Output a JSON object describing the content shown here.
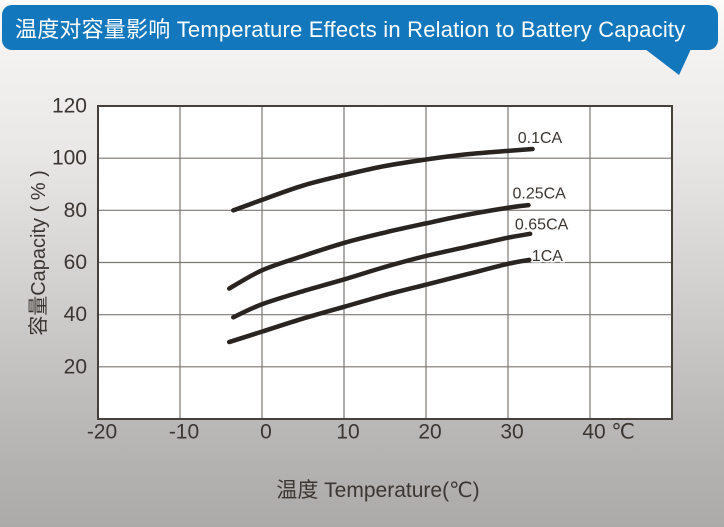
{
  "header": {
    "title": "温度对容量影响 Temperature Effects in Relation to Battery Capacity",
    "bg_color": "#1377bd",
    "text_color": "#ffffff"
  },
  "chart_data": {
    "type": "line",
    "title": "温度对容量影响 Temperature Effects in Relation to Battery Capacity",
    "xlabel": "温度  Temperature(℃)",
    "ylabel": "容量Capacity ( % )",
    "x_unit": "℃",
    "xlim": [
      -20,
      50
    ],
    "ylim": [
      0,
      120
    ],
    "x_ticks": [
      -20,
      -10,
      0,
      10,
      20,
      30,
      40
    ],
    "y_ticks": [
      20,
      40,
      60,
      80,
      100,
      120
    ],
    "grid": true,
    "legend_position": "inline-annotations",
    "series": [
      {
        "name": "0.1CA",
        "points": [
          [
            -3.5,
            80
          ],
          [
            0,
            84
          ],
          [
            5,
            89.5
          ],
          [
            10,
            93.5
          ],
          [
            15,
            97
          ],
          [
            20,
            99.5
          ],
          [
            25,
            101.5
          ],
          [
            30,
            102.8
          ],
          [
            33,
            103.5
          ]
        ],
        "label_at": {
          "t": 33.9,
          "cap": 107.4
        }
      },
      {
        "name": "0.25CA",
        "points": [
          [
            -4,
            50
          ],
          [
            0,
            57
          ],
          [
            5,
            62.5
          ],
          [
            10,
            67.5
          ],
          [
            15,
            71.5
          ],
          [
            20,
            75
          ],
          [
            25,
            78.3
          ],
          [
            30,
            81
          ],
          [
            32.5,
            82
          ]
        ],
        "label_at": {
          "t": 33.8,
          "cap": 86.1
        }
      },
      {
        "name": "0.65CA",
        "points": [
          [
            -3.5,
            39
          ],
          [
            0,
            44
          ],
          [
            5,
            49
          ],
          [
            10,
            53.5
          ],
          [
            15,
            58.3
          ],
          [
            20,
            62.5
          ],
          [
            25,
            66
          ],
          [
            30,
            69.5
          ],
          [
            32.7,
            71
          ]
        ],
        "label_at": {
          "t": 34.1,
          "cap": 74.3
        }
      },
      {
        "name": "1CA",
        "points": [
          [
            -4,
            29.5
          ],
          [
            0,
            33.5
          ],
          [
            5,
            38.5
          ],
          [
            10,
            43
          ],
          [
            15,
            47.5
          ],
          [
            20,
            51.5
          ],
          [
            25,
            55.5
          ],
          [
            30,
            59.5
          ],
          [
            32.6,
            61
          ]
        ],
        "label_at": {
          "t": 34.8,
          "cap": 62.1
        }
      }
    ],
    "colors": {
      "line": "#2a2421",
      "grid": "#7b7773",
      "border": "#45403a",
      "plot_bg": "#ffffff",
      "text": "#3b3632"
    }
  }
}
